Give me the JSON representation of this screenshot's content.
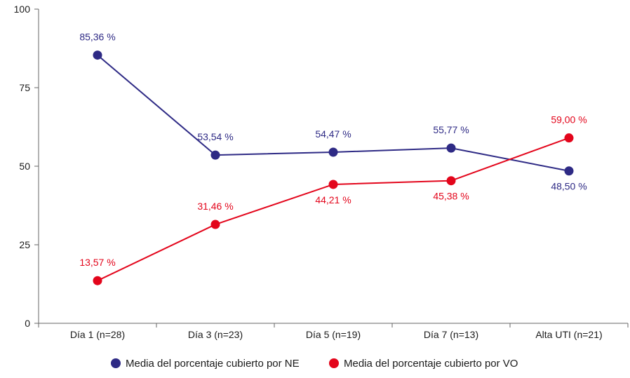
{
  "chart_data": {
    "type": "line",
    "categories": [
      "Día 1 (n=28)",
      "Día 3 (n=23)",
      "Día 5 (n=19)",
      "Día 7 (n=13)",
      "Alta UTI (n=21)"
    ],
    "ylim": [
      0,
      100
    ],
    "yticks": [
      "0",
      "25",
      "50",
      "75",
      "100"
    ],
    "grid": false,
    "legend_position": "bottom",
    "series": [
      {
        "name": "Media del porcentaje cubierto por NE",
        "color": "#2e2a85",
        "values": [
          85.36,
          53.54,
          54.47,
          55.77,
          48.5
        ],
        "labels": [
          "85,36 %",
          "53,54 %",
          "54,47 %",
          "55,77 %",
          "48,50 %"
        ]
      },
      {
        "name": "Media del porcentaje cubierto por VO",
        "color": "#e3051b",
        "values": [
          13.57,
          31.46,
          44.21,
          45.38,
          59.0
        ],
        "labels": [
          "13,57 %",
          "31,46 %",
          "44,21 %",
          "45,38 %",
          "59,00 %"
        ]
      }
    ]
  }
}
